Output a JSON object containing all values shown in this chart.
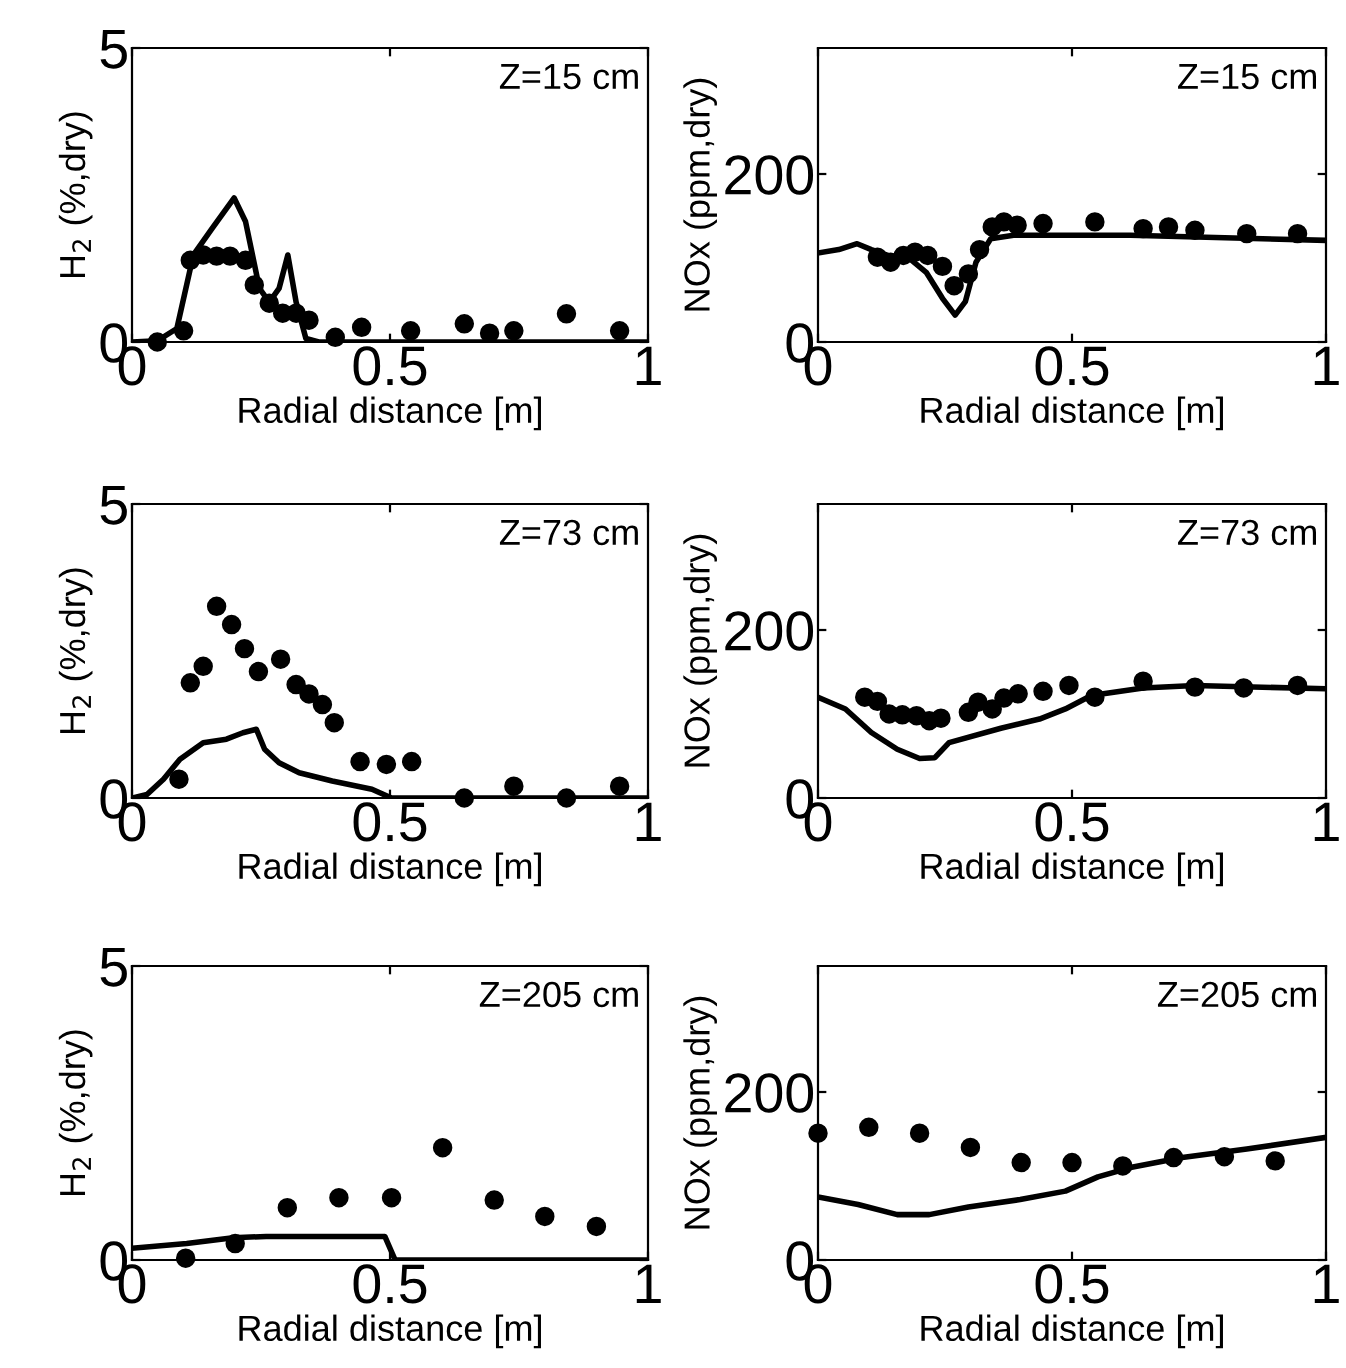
{
  "chart_data": [
    {
      "type": "scatter",
      "xlabel": "Radial distance [m]",
      "ylabel": "H$_{2}$ (%,dry)",
      "annotations": [
        "Z=15 cm"
      ],
      "xlim": [
        0,
        1
      ],
      "xticks": [
        0,
        0.5,
        1
      ],
      "ylim": [
        0,
        5
      ],
      "yticks": [
        0,
        5
      ],
      "series": [
        {
          "marker": "circle",
          "color": "#000000",
          "x": [
            0.049,
            0.1,
            0.113,
            0.138,
            0.164,
            0.19,
            0.22,
            0.237,
            0.266,
            0.292,
            0.318,
            0.343,
            0.394,
            0.445,
            0.54,
            0.644,
            0.693,
            0.74,
            0.842,
            0.945
          ],
          "values": [
            0,
            0.19,
            1.39,
            1.48,
            1.46,
            1.46,
            1.39,
            0.97,
            0.66,
            0.49,
            0.49,
            0.37,
            0.08,
            0.25,
            0.19,
            0.31,
            0.15,
            0.19,
            0.48,
            0.19
          ]
        },
        {
          "type": "line",
          "color": "#000000",
          "x": [
            0,
            0.049,
            0.087,
            0.119,
            0.156,
            0.198,
            0.22,
            0.247,
            0.266,
            0.285,
            0.302,
            0.318,
            0.337,
            0.362,
            1
          ],
          "values": [
            0,
            0.02,
            0.23,
            1.48,
            1.94,
            2.45,
            2.05,
            0.91,
            0.68,
            0.91,
            1.48,
            0.68,
            0.06,
            0,
            0
          ]
        }
      ]
    },
    {
      "type": "scatter",
      "xlabel": "Radial distance [m]",
      "ylabel": "NOx (ppm,dry)",
      "annotations": [
        "Z=15 cm"
      ],
      "xlim": [
        0,
        1
      ],
      "xticks": [
        0,
        0.5,
        1
      ],
      "ylim": [
        0,
        350
      ],
      "yticks": [
        0,
        200
      ],
      "series": [
        {
          "marker": "circle",
          "color": "#000000",
          "x": [
            0.117,
            0.143,
            0.168,
            0.191,
            0.216,
            0.245,
            0.268,
            0.296,
            0.318,
            0.343,
            0.366,
            0.392,
            0.443,
            0.545,
            0.64,
            0.69,
            0.742,
            0.844,
            0.944
          ],
          "values": [
            101,
            95,
            103,
            107,
            103,
            90,
            67,
            81,
            110,
            137,
            143,
            139,
            141,
            143,
            135,
            137,
            133,
            129,
            129
          ]
        },
        {
          "type": "line",
          "color": "#000000",
          "x": [
            0,
            0.041,
            0.077,
            0.105,
            0.143,
            0.181,
            0.213,
            0.245,
            0.27,
            0.29,
            0.311,
            0.34,
            0.385,
            0.615,
            1
          ],
          "values": [
            106,
            110,
            117,
            110,
            102,
            99,
            83,
            52,
            32,
            48,
            95,
            123,
            127,
            127,
            121
          ]
        }
      ]
    },
    {
      "type": "scatter",
      "xlabel": "Radial distance [m]",
      "ylabel": "H$_{2}$ (%,dry)",
      "annotations": [
        "Z=73 cm"
      ],
      "xlim": [
        0,
        1
      ],
      "xticks": [
        0,
        0.5,
        1
      ],
      "ylim": [
        0,
        5
      ],
      "yticks": [
        0,
        5
      ],
      "series": [
        {
          "marker": "circle",
          "color": "#000000",
          "x": [
            0.091,
            0.113,
            0.138,
            0.164,
            0.193,
            0.218,
            0.245,
            0.288,
            0.318,
            0.343,
            0.369,
            0.392,
            0.442,
            0.493,
            0.542,
            0.644,
            0.74,
            0.842,
            0.945
          ],
          "values": [
            0.32,
            1.96,
            2.24,
            3.26,
            2.95,
            2.54,
            2.15,
            2.36,
            1.93,
            1.77,
            1.59,
            1.28,
            0.62,
            0.57,
            0.62,
            0,
            0.2,
            0,
            0.2
          ]
        },
        {
          "type": "line",
          "color": "#000000",
          "x": [
            0,
            0.029,
            0.061,
            0.093,
            0.138,
            0.183,
            0.215,
            0.241,
            0.257,
            0.285,
            0.324,
            0.388,
            0.465,
            0.503,
            1
          ],
          "values": [
            0,
            0.06,
            0.32,
            0.66,
            0.94,
            1.0,
            1.11,
            1.17,
            0.83,
            0.6,
            0.43,
            0.29,
            0.15,
            0,
            0
          ]
        }
      ]
    },
    {
      "type": "scatter",
      "xlabel": "Radial distance [m]",
      "ylabel": "NOx (ppm,dry)",
      "annotations": [
        "Z=73 cm"
      ],
      "xlim": [
        0,
        1
      ],
      "xticks": [
        0,
        0.5,
        1
      ],
      "ylim": [
        0,
        350
      ],
      "yticks": [
        0,
        200
      ],
      "series": [
        {
          "marker": "circle",
          "color": "#000000",
          "x": [
            0.092,
            0.117,
            0.14,
            0.166,
            0.194,
            0.219,
            0.242,
            0.296,
            0.315,
            0.343,
            0.366,
            0.394,
            0.443,
            0.494,
            0.545,
            0.64,
            0.742,
            0.838,
            0.944
          ],
          "values": [
            120,
            115,
            100,
            99,
            98,
            92,
            95,
            102,
            114,
            106,
            119,
            124,
            127,
            134,
            120,
            139,
            132,
            131,
            134
          ]
        },
        {
          "type": "line",
          "color": "#000000",
          "x": [
            0,
            0.054,
            0.105,
            0.156,
            0.2,
            0.23,
            0.258,
            0.36,
            0.436,
            0.487,
            0.538,
            0.64,
            0.742,
            1
          ],
          "values": [
            120,
            106,
            78,
            58,
            47,
            48,
            66,
            83,
            94,
            106,
            122,
            131,
            134,
            130
          ]
        }
      ]
    },
    {
      "type": "scatter",
      "xlabel": "Radial distance [m]",
      "ylabel": "H$_{2}$ (%,dry)",
      "annotations": [
        "Z=205 cm"
      ],
      "xlim": [
        0,
        1
      ],
      "xticks": [
        0,
        0.5,
        1
      ],
      "ylim": [
        0,
        5
      ],
      "yticks": [
        0,
        5
      ],
      "series": [
        {
          "marker": "circle",
          "color": "#000000",
          "x": [
            0.104,
            0.2,
            0.301,
            0.401,
            0.503,
            0.602,
            0.702,
            0.8,
            0.9
          ],
          "values": [
            0.03,
            0.28,
            0.89,
            1.06,
            1.06,
            1.91,
            1.02,
            0.74,
            0.57
          ]
        },
        {
          "type": "line",
          "color": "#000000",
          "x": [
            0,
            0.106,
            0.196,
            0.26,
            0.49,
            0.51,
            1
          ],
          "values": [
            0.2,
            0.28,
            0.38,
            0.4,
            0.4,
            0,
            0
          ]
        }
      ]
    },
    {
      "type": "scatter",
      "xlabel": "Radial distance [m]",
      "ylabel": "NOx (ppm,dry)",
      "annotations": [
        "Z=205 cm"
      ],
      "xlim": [
        0,
        1
      ],
      "xticks": [
        0,
        0.5,
        1
      ],
      "ylim": [
        0,
        350
      ],
      "yticks": [
        0,
        200
      ],
      "series": [
        {
          "marker": "circle",
          "color": "#000000",
          "x": [
            0,
            0.1,
            0.2,
            0.3,
            0.4,
            0.5,
            0.6,
            0.7,
            0.8,
            0.9
          ],
          "values": [
            151,
            158,
            151,
            134,
            116,
            116,
            112,
            122,
            123,
            118
          ]
        },
        {
          "type": "line",
          "color": "#000000",
          "x": [
            0,
            0.079,
            0.156,
            0.219,
            0.296,
            0.398,
            0.487,
            0.551,
            0.615,
            0.717,
            0.844,
            1
          ],
          "values": [
            75,
            66,
            54,
            54,
            63,
            72,
            82,
            99,
            110,
            122,
            132,
            146
          ]
        }
      ]
    }
  ]
}
